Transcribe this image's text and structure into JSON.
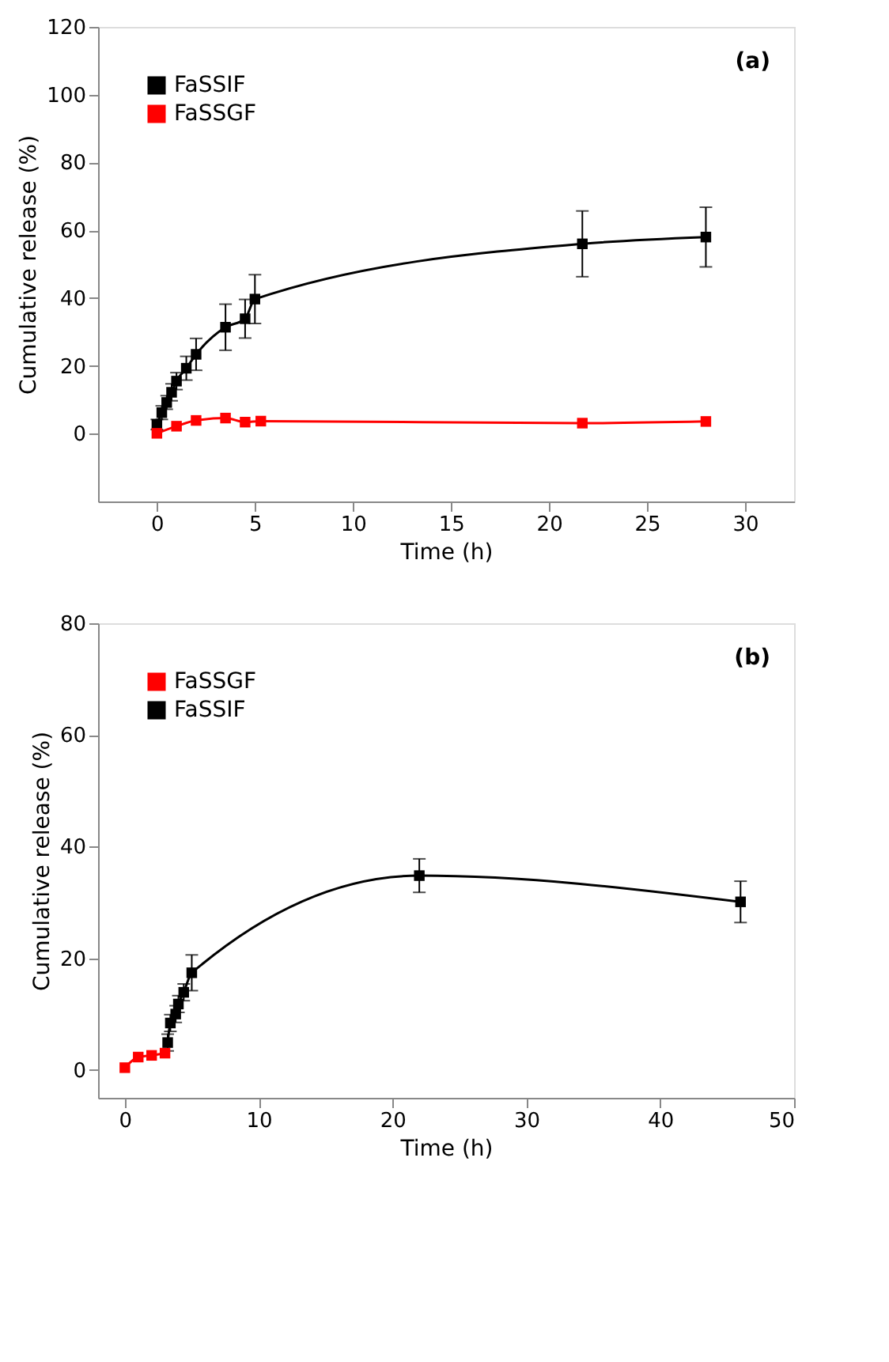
{
  "chart_data": [
    {
      "type": "line",
      "xlabel": "Time (h)",
      "ylabel": "Cumulative release (%)",
      "annotations": [
        "(a)"
      ],
      "xlim": [
        -3,
        32.5
      ],
      "xticks": [
        0,
        5,
        10,
        15,
        20,
        25,
        30
      ],
      "ylim": [
        -20,
        120
      ],
      "yticks": [
        0,
        20,
        40,
        60,
        80,
        100,
        120
      ],
      "grid": false,
      "legend": "top left",
      "marker": "square",
      "line_style": "solid",
      "series": [
        {
          "name": "FaSSIF",
          "color": "#000000",
          "x": [
            0,
            0.25,
            0.5,
            0.75,
            1.0,
            1.5,
            2.0,
            3.5,
            4.5,
            5.0,
            21.7,
            28
          ],
          "values": [
            2.7,
            6.2,
            9.2,
            12.2,
            15.5,
            19.3,
            23.4,
            31.4,
            33.9,
            39.7,
            56,
            58
          ],
          "errors": [
            1.5,
            2,
            2,
            2.5,
            2.5,
            3.5,
            4.7,
            6.8,
            5.7,
            7.2,
            9.7,
            8.8
          ]
        },
        {
          "name": "FaSSGF",
          "color": "#ff0000",
          "x": [
            0,
            1.0,
            2.0,
            3.5,
            4.5,
            5.3,
            21.7,
            28
          ],
          "values": [
            0.1,
            2.2,
            3.9,
            4.6,
            3.4,
            3.7,
            3.1,
            3.6
          ]
        }
      ]
    },
    {
      "type": "line",
      "xlabel": "Time (h)",
      "ylabel": "Cumulative release (%)",
      "annotations": [
        "(b)"
      ],
      "xlim": [
        -2,
        50
      ],
      "xticks": [
        0,
        10,
        20,
        30,
        40,
        50
      ],
      "ylim": [
        -5,
        80
      ],
      "yticks": [
        0,
        20,
        40,
        60,
        80
      ],
      "grid": false,
      "legend": "top left",
      "marker": "square",
      "line_style": "solid",
      "series": [
        {
          "name": "FaSSGF",
          "color": "#ff0000",
          "x": [
            0,
            1.0,
            2.0,
            3.0
          ],
          "values": [
            0.4,
            2.3,
            2.6,
            3.0
          ]
        },
        {
          "name": "FaSSIF",
          "color": "#000000",
          "x": [
            3.2,
            3.4,
            3.8,
            4.0,
            4.4,
            5.0,
            22,
            46
          ],
          "values": [
            4.9,
            8.4,
            10.0,
            11.8,
            13.9,
            17.4,
            34.8,
            30.1
          ],
          "errors": [
            1.5,
            1.5,
            1.5,
            1.5,
            1.5,
            3.2,
            3.0,
            3.7
          ]
        }
      ]
    }
  ]
}
